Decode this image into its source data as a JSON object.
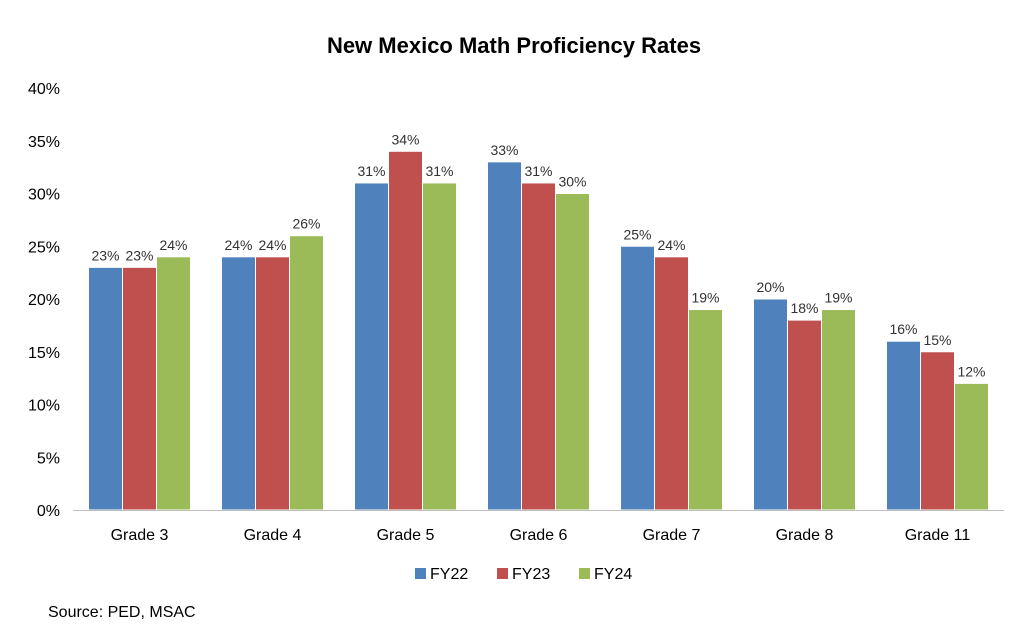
{
  "chart_data": {
    "type": "bar",
    "title": "New Mexico Math Proficiency Rates",
    "categories": [
      "Grade 3",
      "Grade 4",
      "Grade 5",
      "Grade 6",
      "Grade 7",
      "Grade 8",
      "Grade 11"
    ],
    "series": [
      {
        "name": "FY22",
        "color": "#4f81bd",
        "values": [
          23,
          24,
          31,
          33,
          25,
          20,
          16
        ]
      },
      {
        "name": "FY23",
        "color": "#c0504d",
        "values": [
          23,
          24,
          34,
          31,
          24,
          18,
          15
        ]
      },
      {
        "name": "FY24",
        "color": "#9bbb59",
        "values": [
          24,
          26,
          31,
          30,
          19,
          19,
          12
        ]
      }
    ],
    "ylim": [
      0,
      40
    ],
    "yticks": [
      0,
      5,
      10,
      15,
      20,
      25,
      30,
      35,
      40
    ],
    "y_format": "percent",
    "grid": false,
    "legend": "bottom-center",
    "xlabel": "",
    "ylabel": ""
  },
  "source": "Source: PED, MSAC"
}
